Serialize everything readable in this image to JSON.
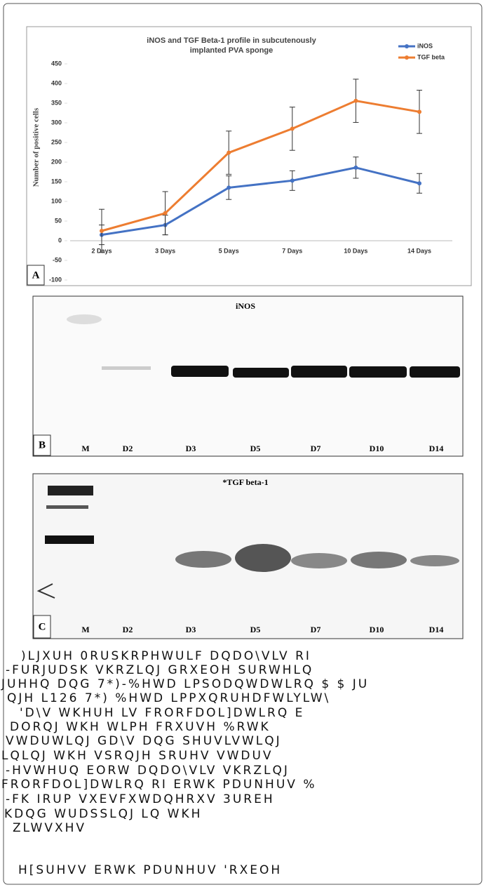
{
  "chart_data": {
    "type": "line",
    "panel_label": "A",
    "title": "iNOS and TGF Beta-1 profile in subcutenously",
    "subtitle": "implanted PVA sponge",
    "y_label": "Number of positive cells",
    "categories": [
      "2 Days",
      "3 Days",
      "5 Days",
      "7 Days",
      "10 Days",
      "14 Days"
    ],
    "series": [
      {
        "name": "iNOS",
        "color": "#4472c4",
        "values": [
          15,
          40,
          135,
          153,
          186,
          146
        ],
        "errors": [
          25,
          25,
          30,
          25,
          27,
          25
        ]
      },
      {
        "name": "TGF beta",
        "color": "#ed7d31",
        "values": [
          25,
          70,
          224,
          285,
          356,
          328
        ],
        "errors": [
          55,
          55,
          55,
          55,
          55,
          55
        ]
      }
    ],
    "ylim": [
      -100,
      450
    ],
    "yticks": [
      -100,
      -50,
      0,
      50,
      100,
      150,
      200,
      250,
      300,
      350,
      400,
      450
    ],
    "legend": "top-right"
  },
  "blots": [
    {
      "panel_label": "B",
      "title": "iNOS",
      "lanes": [
        "M",
        "D2",
        "D3",
        "D5",
        "D7",
        "D10",
        "D14"
      ]
    },
    {
      "panel_label": "C",
      "title": "*TGF beta-1",
      "lanes": [
        "M",
        "D2",
        "D3",
        "D5",
        "D7",
        "D10",
        "D14"
      ]
    }
  ],
  "caption": {
    "lines": [
      ")LJXUH 0RUSKRPHWULF DQDO\\VLV RI",
      "-FURJUDSK VKRZLQJ GRXEOH SURWHLQ",
      "JUHHQ DQG 7*)-%HWD LPSODQWDWLRQ $ $ JU",
      "QJH L126 7*) %HWD LPPXQRUHDFWLYLW\\",
      "'D\\V WKHUH LV FRORFDOL]DWLRQ E",
      "DORQJ WKH WLPH FRXUVH %RWK",
      "VWDUWLQJ GD\\V DQG SHUVLVWLQJ",
      "LQLQJ WKH VSRQJH SRUHV VWDUV",
      "-HVWHUQ EORW DQDO\\VLV VKRZLQJ",
      "FRORFDOL]DWLRQ RI ERWK PDUNHUV %",
      "-FK IRUP VXEVFXWDQHRXV 3UREH",
      "KDQG WUDSSLQJ LQ WKH",
      "ZLWVXHV",
      "H[SUHVV ERWK PDUNHUV 'RXEOH"
    ]
  }
}
